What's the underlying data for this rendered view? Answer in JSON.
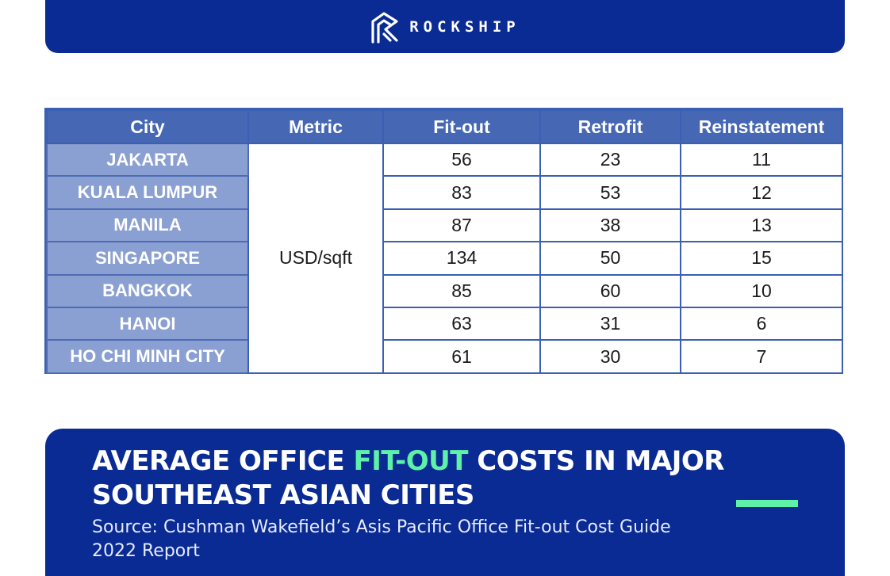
{
  "brand": {
    "name": "ROCKSHIP",
    "logo_icon": "rockship-logo-icon",
    "color": "#0a2a94",
    "accent": "#5df2a8"
  },
  "chart_data": {
    "type": "table",
    "columns": [
      "City",
      "Metric",
      "Fit-out",
      "Retrofit",
      "Reinstatement"
    ],
    "metric": "USD/sqft",
    "rows": [
      {
        "city": "JAKARTA",
        "fit_out": 56,
        "retrofit": 23,
        "reinstatement": 11
      },
      {
        "city": "KUALA LUMPUR",
        "fit_out": 83,
        "retrofit": 53,
        "reinstatement": 12
      },
      {
        "city": "MANILA",
        "fit_out": 87,
        "retrofit": 38,
        "reinstatement": 13
      },
      {
        "city": "SINGAPORE",
        "fit_out": 134,
        "retrofit": 50,
        "reinstatement": 15
      },
      {
        "city": "BANGKOK",
        "fit_out": 85,
        "retrofit": 60,
        "reinstatement": 10
      },
      {
        "city": "HANOI",
        "fit_out": 63,
        "retrofit": 31,
        "reinstatement": 6
      },
      {
        "city": "HO CHI MINH CITY",
        "fit_out": 61,
        "retrofit": 30,
        "reinstatement": 7
      }
    ]
  },
  "footer": {
    "title_part1": "AVERAGE OFFICE ",
    "title_highlight": "FIT-OUT",
    "title_part2": " COSTS IN MAJOR SOUTHEAST ASIAN CITIES",
    "source": "Source: Cushman Wakefield’s Asis Pacific Office Fit-out Cost Guide 2022 Report"
  }
}
